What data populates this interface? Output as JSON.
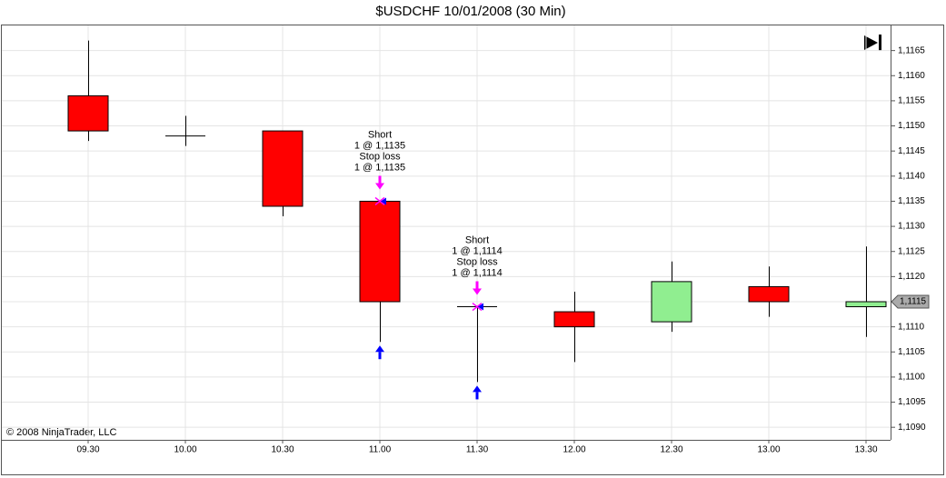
{
  "chart_data": {
    "type": "candlestick",
    "title": "$USDCHF  10/01/2008 (30 Min)",
    "categories": [
      "09.30",
      "10.00",
      "10.30",
      "11.00",
      "11.30",
      "12.00",
      "12.30",
      "13.00",
      "13.30"
    ],
    "open": [
      1.1156,
      1.1148,
      1.1149,
      1.1135,
      1.1114,
      1.1113,
      1.1111,
      1.1118,
      1.1114
    ],
    "high": [
      1.1167,
      1.1152,
      1.1149,
      1.1135,
      1.1114,
      1.1117,
      1.1123,
      1.1122,
      1.1126
    ],
    "low": [
      1.1147,
      1.1146,
      1.1132,
      1.1107,
      1.1099,
      1.1103,
      1.1109,
      1.1112,
      1.1108
    ],
    "close": [
      1.1149,
      1.1148,
      1.1134,
      1.1115,
      1.1114,
      1.111,
      1.1119,
      1.1115,
      1.1115
    ],
    "up_color": "#90ee90",
    "down_color": "#ff0000",
    "ylim": [
      1.10875,
      1.117
    ],
    "yticks": [
      {
        "value": 1.109,
        "label": "1,1090"
      },
      {
        "value": 1.1095,
        "label": "1,1095"
      },
      {
        "value": 1.11,
        "label": "1,1100"
      },
      {
        "value": 1.1105,
        "label": "1,1105"
      },
      {
        "value": 1.111,
        "label": "1,1110"
      },
      {
        "value": 1.1115,
        "label": "1,1115"
      },
      {
        "value": 1.112,
        "label": "1,1120"
      },
      {
        "value": 1.1125,
        "label": "1,1125"
      },
      {
        "value": 1.113,
        "label": "1,1130"
      },
      {
        "value": 1.1135,
        "label": "1,1135"
      },
      {
        "value": 1.114,
        "label": "1,1140"
      },
      {
        "value": 1.1145,
        "label": "1,1145"
      },
      {
        "value": 1.115,
        "label": "1,1150"
      },
      {
        "value": 1.1155,
        "label": "1,1155"
      },
      {
        "value": 1.116,
        "label": "1,1160"
      },
      {
        "value": 1.1165,
        "label": "1,1165"
      }
    ],
    "grid": true,
    "annotations": [
      null,
      null,
      null,
      [
        "Short",
        "1 @ 1,1135",
        "Stop loss",
        "1 @ 1,1135"
      ],
      [
        "Short",
        "1 @ 1,1114",
        "Stop loss",
        "1 @ 1,1114"
      ],
      null,
      null,
      null,
      null
    ],
    "last_price": {
      "value": 1.1115,
      "label": "1,1115"
    },
    "copyright": "© 2008 NinjaTrader, LLC"
  }
}
